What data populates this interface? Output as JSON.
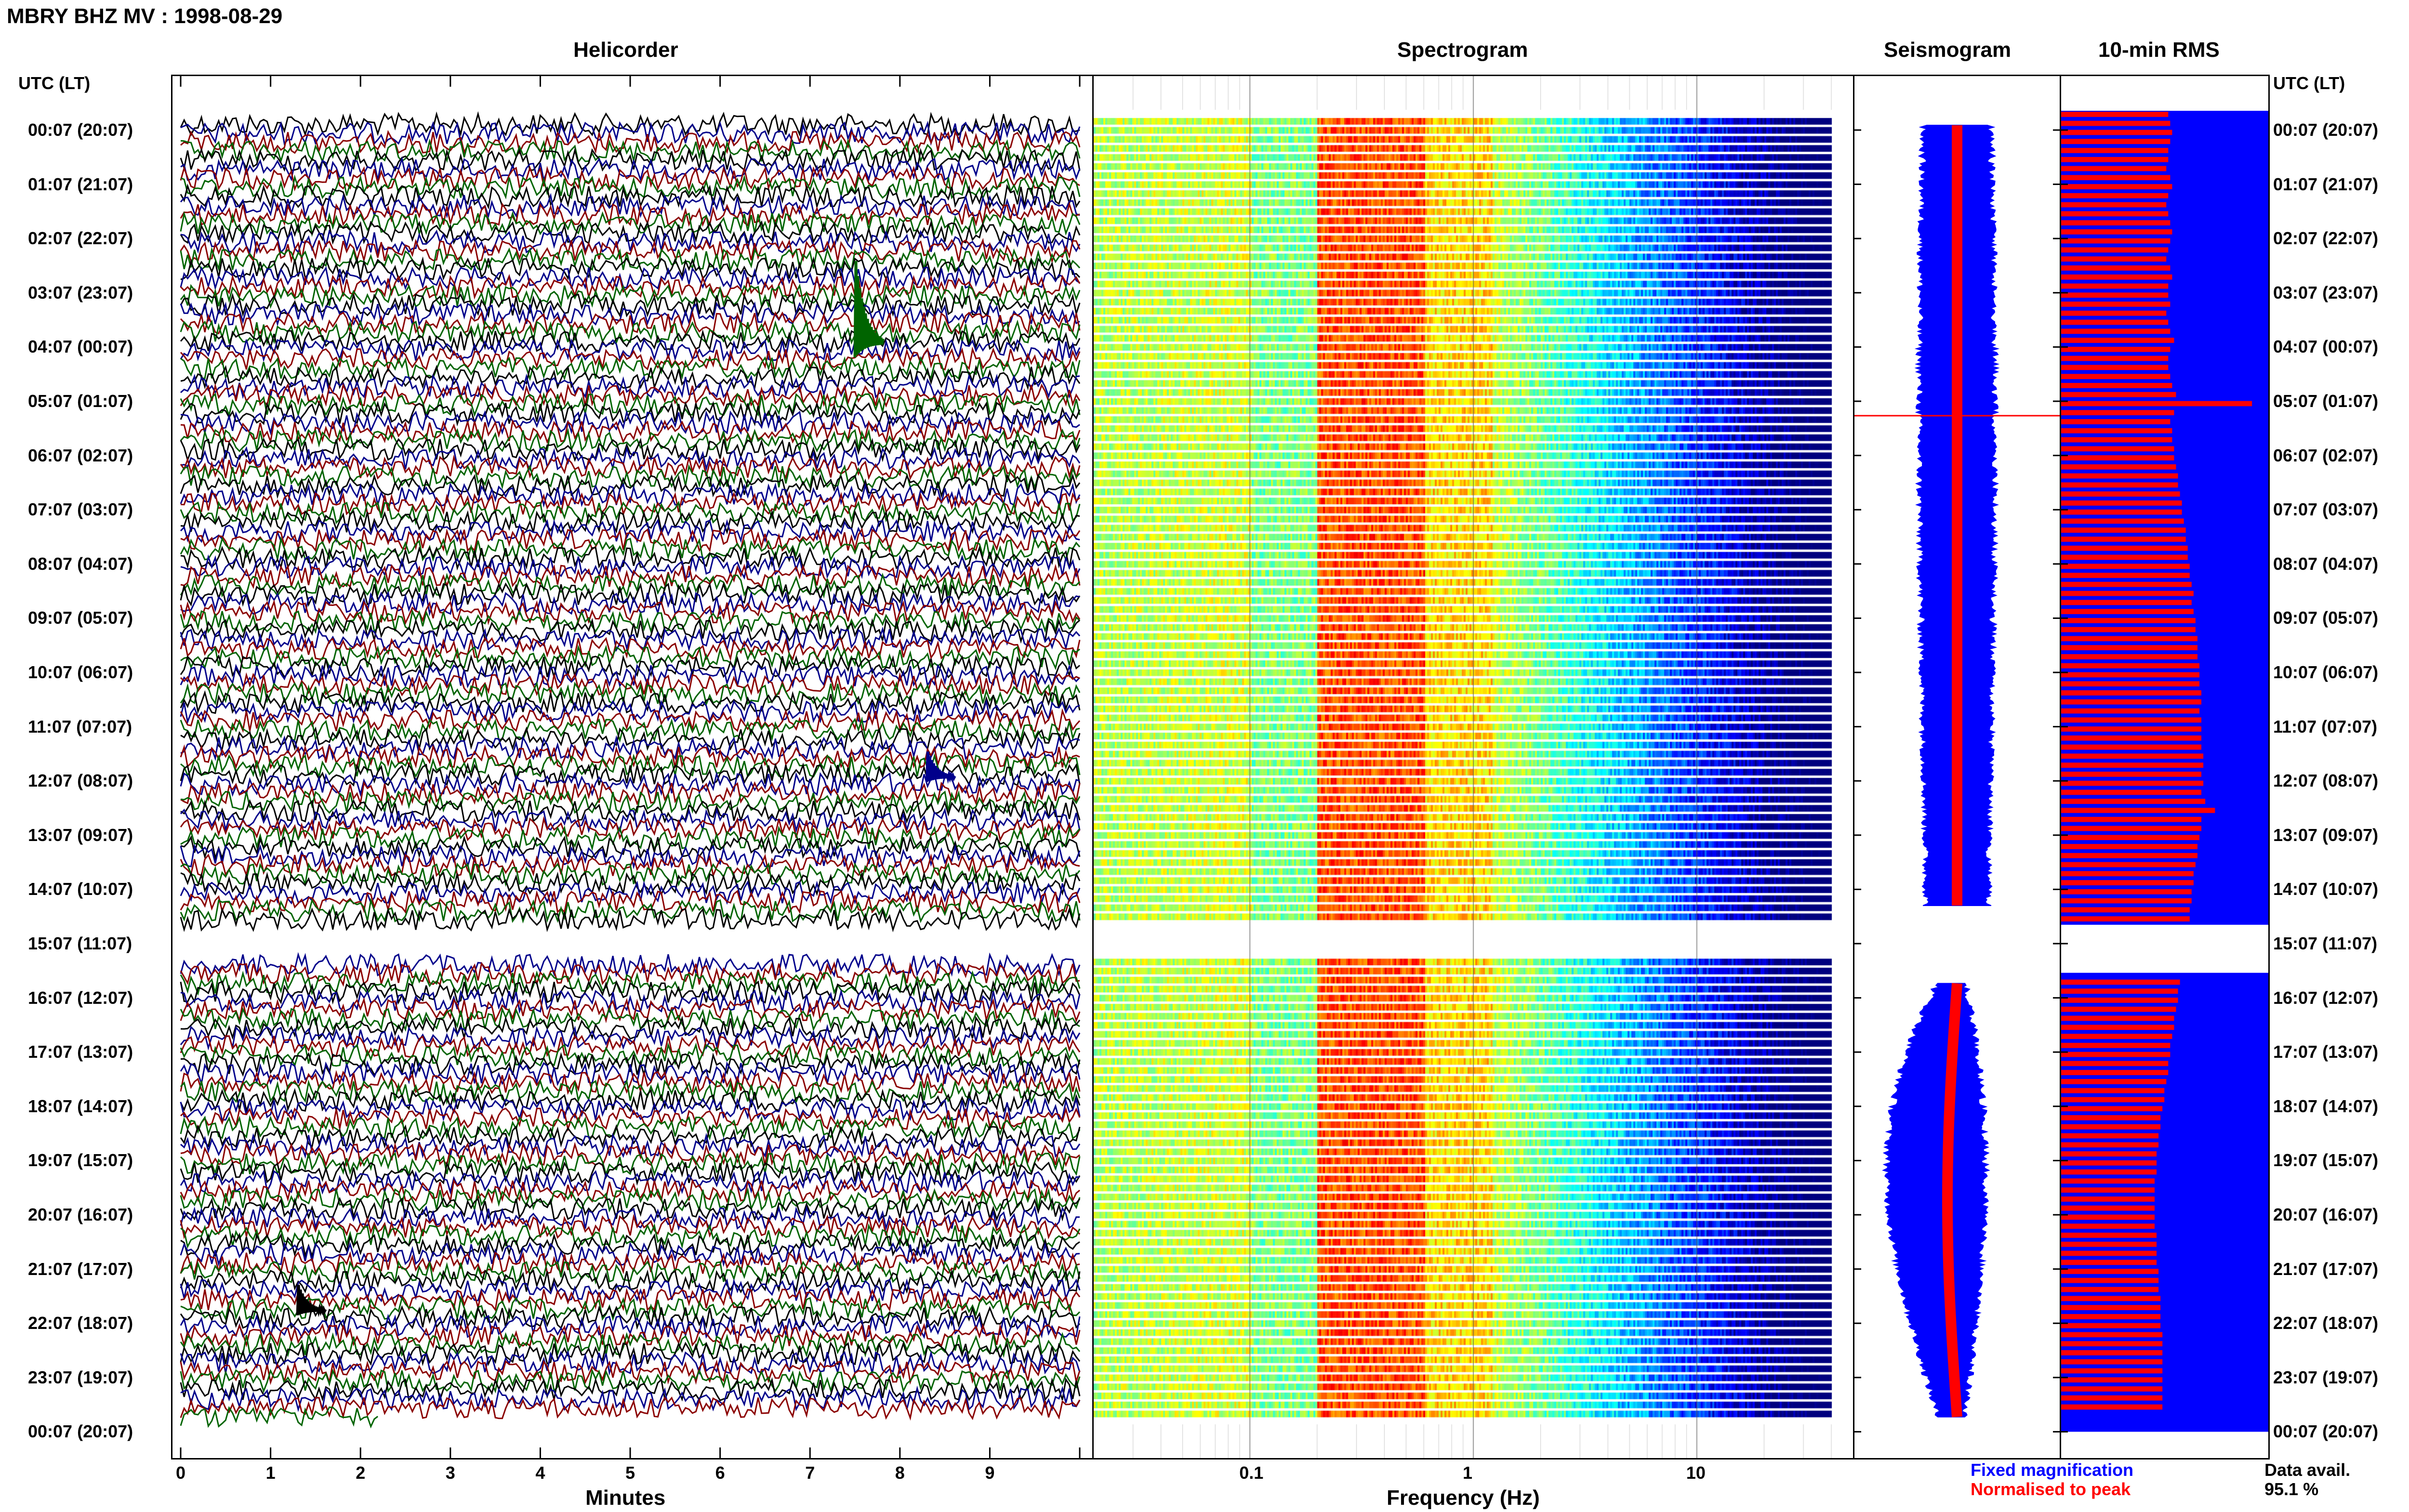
{
  "title": "MBRY BHZ MV : 1998-08-29",
  "utc_header_left": "UTC (LT)",
  "utc_header_right": "UTC (LT)",
  "panels": {
    "helicorder": "Helicorder",
    "spectrogram": "Spectrogram",
    "seismogram": "Seismogram",
    "rms": "10-min RMS"
  },
  "time_labels": [
    "00:07 (20:07)",
    "01:07 (21:07)",
    "02:07 (22:07)",
    "03:07 (23:07)",
    "04:07 (00:07)",
    "05:07 (01:07)",
    "06:07 (02:07)",
    "07:07 (03:07)",
    "08:07 (04:07)",
    "09:07 (05:07)",
    "10:07 (06:07)",
    "11:07 (07:07)",
    "12:07 (08:07)",
    "13:07 (09:07)",
    "14:07 (10:07)",
    "15:07 (11:07)",
    "16:07 (12:07)",
    "17:07 (13:07)",
    "18:07 (14:07)",
    "19:07 (15:07)",
    "20:07 (16:07)",
    "21:07 (17:07)",
    "22:07 (18:07)",
    "23:07 (19:07)",
    "00:07 (20:07)"
  ],
  "legend": {
    "fixed": "Fixed magnification",
    "normalised": "Normalised to peak",
    "fixed_color": "#0000ff",
    "normalised_color": "#ff0000"
  },
  "data_avail": {
    "label": "Data avail.",
    "value": "95.1 %"
  },
  "chart_data": {
    "type": "line",
    "helicorder": {
      "xlabel": "Minutes",
      "x_ticks": [
        "0",
        "1",
        "2",
        "3",
        "4",
        "5",
        "6",
        "7",
        "8",
        "9"
      ],
      "xlim": [
        0,
        10
      ],
      "trace_colors": [
        "#000000",
        "#00008b",
        "#8b0000",
        "#006400"
      ],
      "data_gap": "15:07 (11:07)",
      "events": [
        {
          "time": "04:10",
          "minute": 7.5,
          "color": "#006400"
        },
        {
          "time": "12:10",
          "minute": 8.3,
          "color": "#00008b"
        },
        {
          "time": "22:00",
          "minute": 1.3,
          "color": "#000000"
        }
      ]
    },
    "spectrogram": {
      "xlabel": "Frequency (Hz)",
      "x_ticks": [
        "0.1",
        "1",
        "10"
      ],
      "scale": "log",
      "xlim": [
        0.02,
        40
      ],
      "colormap": "jet",
      "dominant_band_hz": [
        0.2,
        0.5
      ]
    },
    "seismogram": {
      "fixed_magnification": "blue",
      "normalised_to_peak": "red"
    },
    "rms": {
      "interval": "10-min",
      "rows_per_hour": 6,
      "relative_values": [
        0.55,
        0.56,
        0.57,
        0.56,
        0.55,
        0.55,
        0.54,
        0.56,
        0.57,
        0.55,
        0.54,
        0.55,
        0.56,
        0.57,
        0.56,
        0.55,
        0.54,
        0.56,
        0.57,
        0.55,
        0.55,
        0.56,
        0.54,
        0.55,
        0.56,
        0.58,
        0.56,
        0.55,
        0.55,
        0.56,
        0.57,
        0.59,
        0.98,
        0.58,
        0.56,
        0.57,
        0.57,
        0.58,
        0.58,
        0.59,
        0.6,
        0.6,
        0.61,
        0.62,
        0.62,
        0.63,
        0.64,
        0.64,
        0.65,
        0.65,
        0.66,
        0.66,
        0.67,
        0.68,
        0.67,
        0.68,
        0.69,
        0.69,
        0.7,
        0.7,
        0.7,
        0.71,
        0.71,
        0.71,
        0.72,
        0.72,
        0.71,
        0.72,
        0.72,
        0.72,
        0.72,
        0.73,
        0.73,
        0.72,
        0.73,
        0.72,
        0.74,
        0.79,
        0.72,
        0.72,
        0.71,
        0.7,
        0.7,
        0.69,
        0.68,
        0.68,
        0.67,
        0.67,
        0.66,
        0.66,
        null,
        null,
        null,
        null,
        null,
        null,
        0.61,
        0.6,
        0.6,
        0.59,
        0.58,
        0.58,
        0.57,
        0.56,
        0.56,
        0.55,
        0.55,
        0.54,
        0.53,
        0.53,
        0.52,
        0.51,
        0.51,
        0.5,
        0.5,
        0.49,
        0.49,
        0.49,
        0.48,
        0.48,
        0.48,
        0.48,
        0.48,
        0.48,
        0.49,
        0.49,
        0.49,
        0.49,
        0.5,
        0.5,
        0.5,
        0.51,
        0.51,
        0.51,
        0.51,
        0.52,
        0.52,
        0.52,
        0.52,
        0.52,
        0.52,
        0.52,
        0.52,
        0.52
      ]
    }
  }
}
